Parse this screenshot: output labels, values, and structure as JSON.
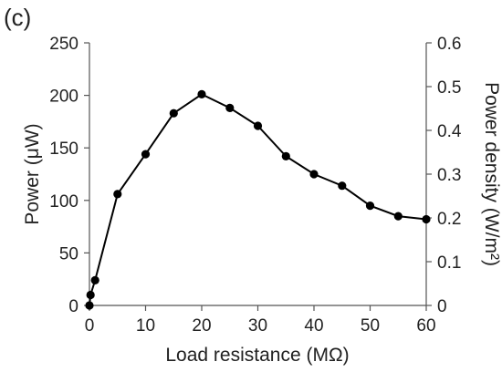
{
  "chart_data": {
    "type": "line",
    "panel_label": "(c)",
    "xlabel": "Load resistance (MΩ)",
    "ylabel": "Power (μW)",
    "ylabel_right": "Power density (W/m²)",
    "xlim": [
      0,
      60
    ],
    "ylim": [
      0,
      250
    ],
    "ylim_right": [
      0,
      0.6
    ],
    "x_ticks": [
      "0",
      "10",
      "20",
      "30",
      "40",
      "50",
      "60"
    ],
    "y_ticks": [
      "0",
      "50",
      "100",
      "150",
      "200",
      "250"
    ],
    "y_ticks_right": [
      "0",
      "0.1",
      "0.2",
      "0.3",
      "0.4",
      "0.5",
      "0.6"
    ],
    "grid": false,
    "marker_color": "#000000",
    "series": [
      {
        "x": [
          0,
          0.2,
          1,
          5,
          10,
          15,
          20,
          25,
          30,
          35,
          40,
          45,
          50,
          55,
          60
        ],
        "values": [
          0,
          10,
          24,
          106,
          144,
          183,
          201,
          188,
          171,
          142,
          125,
          114,
          95,
          85,
          82
        ]
      }
    ]
  }
}
